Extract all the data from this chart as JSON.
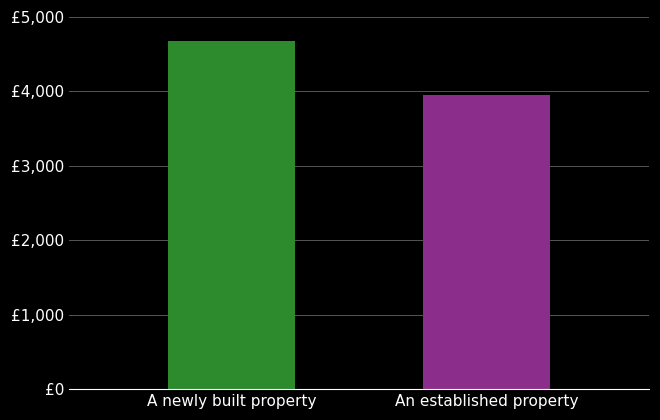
{
  "categories": [
    "A newly built property",
    "An established property"
  ],
  "values": [
    4680,
    3950
  ],
  "bar_colors": [
    "#2d8a2d",
    "#8b2d8b"
  ],
  "background_color": "#000000",
  "text_color": "#ffffff",
  "grid_color": "#555555",
  "ylim": [
    0,
    5000
  ],
  "yticks": [
    0,
    1000,
    2000,
    3000,
    4000,
    5000
  ],
  "ytick_labels": [
    "£0",
    "£1,000",
    "£2,000",
    "£3,000",
    "£4,000",
    "£5,000"
  ],
  "bar_width": 0.22,
  "x_positions": [
    0.28,
    0.72
  ],
  "xlim": [
    0,
    1
  ],
  "figsize": [
    6.6,
    4.2
  ],
  "dpi": 100
}
